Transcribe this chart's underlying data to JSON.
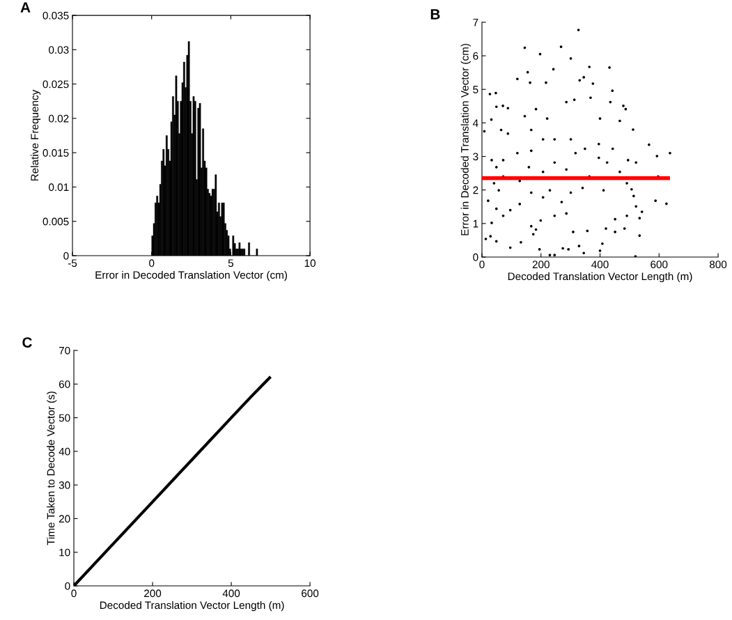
{
  "chart_data": [
    {
      "type": "histogram",
      "title": "A",
      "xlabel": "Error in Decoded Translation Vector (cm)",
      "ylabel": "Relative Frequency",
      "color": "#000000",
      "bins": [
        0,
        0.1,
        0.2,
        0.3,
        0.4,
        0.5,
        0.6,
        0.7,
        0.8,
        0.9,
        1.0,
        1.1,
        1.2,
        1.3,
        1.4,
        1.5,
        1.6,
        1.7,
        1.8,
        1.9,
        2.0,
        2.1,
        2.2,
        2.3,
        2.4,
        2.5,
        2.6,
        2.7,
        2.8,
        2.9,
        3.0,
        3.1,
        3.2,
        3.3,
        3.4,
        3.5,
        3.6,
        3.7,
        3.8,
        3.9,
        4.0,
        4.1,
        4.2,
        4.3,
        4.4,
        4.5,
        4.6,
        4.7,
        4.8,
        4.9,
        5.0,
        5.1,
        5.2,
        5.3,
        5.4,
        5.5,
        5.6,
        5.7,
        5.8,
        5.9,
        6.0,
        6.1,
        6.2,
        6.3,
        6.4,
        6.5,
        6.6,
        6.7
      ],
      "values": [
        0.0029,
        0.0047,
        0.0077,
        0.0087,
        0.0077,
        0.0104,
        0.0138,
        0.0155,
        0.0131,
        0.0175,
        0.0155,
        0.0138,
        0.0195,
        0.0232,
        0.0205,
        0.0262,
        0.0225,
        0.0178,
        0.0225,
        0.0252,
        0.0282,
        0.0245,
        0.0292,
        0.0312,
        0.0225,
        0.0178,
        0.0232,
        0.0225,
        0.0111,
        0.0215,
        0.0222,
        0.0128,
        0.0185,
        0.0138,
        0.0128,
        0.0097,
        0.0091,
        0.0087,
        0.0097,
        0.0097,
        0.0118,
        0.0064,
        0.0077,
        0.0057,
        0.0077,
        0.0077,
        0.0047,
        0.0037,
        0.0029,
        0.001,
        0,
        0.0029,
        0.0018,
        0.001,
        0.001,
        0.0019,
        0.001,
        0.001,
        0.001,
        0,
        0,
        0.0019,
        0,
        0,
        0,
        0,
        0.001
      ],
      "xlim": [
        -5,
        10
      ],
      "xticks": [
        -5,
        0,
        5,
        10
      ],
      "ylim": [
        0,
        0.035
      ],
      "yticks": [
        0,
        0.005,
        0.01,
        0.015,
        0.02,
        0.025,
        0.03,
        0.035
      ]
    },
    {
      "type": "scatter",
      "title": "B",
      "xlabel": "Decoded Translation Vector Length (m)",
      "ylabel": "Error in Decoded Translation Vector (cm)",
      "marker": "circle",
      "xlim": [
        0,
        800
      ],
      "xticks": [
        0,
        200,
        400,
        600,
        800
      ],
      "ylim": [
        0,
        7
      ],
      "yticks": [
        0,
        1,
        2,
        3,
        4,
        5,
        6,
        7
      ],
      "series": [
        {
          "color": "#000000",
          "x": [
            8,
            13,
            21,
            29,
            27,
            47,
            32,
            49,
            71,
            88,
            65,
            88,
            33,
            49,
            72,
            120,
            145,
            155,
            163,
            197,
            217,
            242,
            268,
            301,
            327,
            331,
            364,
            376,
            432,
            345,
            442,
            479,
            487,
            512,
            566,
            593,
            637,
            597,
            588,
            625,
            542,
            534,
            534,
            520,
            400,
            408,
            345,
            329,
            293,
            274,
            230,
            246,
            195,
            96,
            132,
            49,
            174,
            183,
            167,
            199,
            246,
            286,
            309,
            357,
            420,
            451,
            483,
            491,
            451,
            507,
            522,
            514,
            491,
            467,
            495,
            522,
            424,
            396,
            364,
            341,
            301,
            270,
            230,
            207,
            167,
            128,
            96,
            72,
            49,
            33,
            57,
            41,
            128,
            207,
            286,
            412,
            396,
            301,
            246,
            207,
            167,
            145,
            183,
            221,
            286,
            313,
            368,
            400,
            435,
            443,
            467,
            120,
            72,
            167,
            317,
            246,
            349,
            159
          ],
          "values": [
            3.75,
            0.54,
            1.68,
            0.62,
            4.86,
            4.89,
            4.1,
            4.48,
            4.51,
            4.44,
            3.79,
            3.68,
            2.89,
            2.68,
            2.4,
            5.31,
            6.24,
            5.51,
            5.2,
            6.05,
            5.2,
            5.6,
            6.27,
            5.92,
            6.77,
            5.27,
            5.67,
            5.17,
            5.65,
            5.36,
            4.96,
            4.51,
            4.41,
            3.8,
            3.35,
            3.01,
            3.1,
            2.4,
            1.68,
            1.59,
            1.35,
            1.16,
            0.64,
            0.02,
            0.19,
            0.4,
            0.12,
            0.33,
            0.23,
            0.26,
            0.06,
            0.06,
            0.23,
            0.28,
            0.44,
            0.47,
            0.68,
            0.82,
            0.92,
            1.09,
            1.23,
            1.3,
            0.75,
            0.78,
            0.85,
            0.75,
            0.85,
            1.23,
            1.13,
            2.02,
            1.51,
            1.82,
            2.2,
            2.54,
            2.89,
            2.82,
            2.82,
            2.96,
            2.4,
            2.06,
            1.92,
            1.64,
            1.99,
            1.78,
            1.92,
            1.58,
            1.4,
            1.23,
            1.44,
            1.02,
            1.99,
            2.2,
            2.27,
            2.54,
            2.61,
            1.99,
            3.37,
            3.51,
            3.51,
            3.51,
            3.79,
            4.2,
            4.41,
            4.13,
            4.62,
            4.69,
            4.75,
            4.13,
            4.62,
            3.23,
            4.06,
            3.1,
            2.89,
            3.17,
            3.1,
            2.82,
            3.23,
            2.68
          ]
        },
        {
          "type": "line",
          "color": "#ff0000",
          "marker": "none",
          "x": [
            0,
            637
          ],
          "values": [
            2.35,
            2.35
          ]
        }
      ]
    },
    {
      "type": "line",
      "title": "C",
      "xlabel": "Decoded Translation Vector Length (m)",
      "ylabel": "Time Taken to Decode Vector (s)",
      "marker": "none",
      "line_style": "solid",
      "xlim": [
        0,
        600
      ],
      "xticks": [
        0,
        200,
        400,
        600
      ],
      "ylim": [
        0,
        70
      ],
      "yticks": [
        0,
        10,
        20,
        30,
        40,
        50,
        60,
        70
      ],
      "series": [
        {
          "color": "#000000",
          "x": [
            0,
            100,
            200,
            300,
            400,
            450,
            500
          ],
          "values": [
            0,
            12.5,
            25,
            37.5,
            50,
            56.2,
            62.2
          ]
        }
      ]
    }
  ]
}
